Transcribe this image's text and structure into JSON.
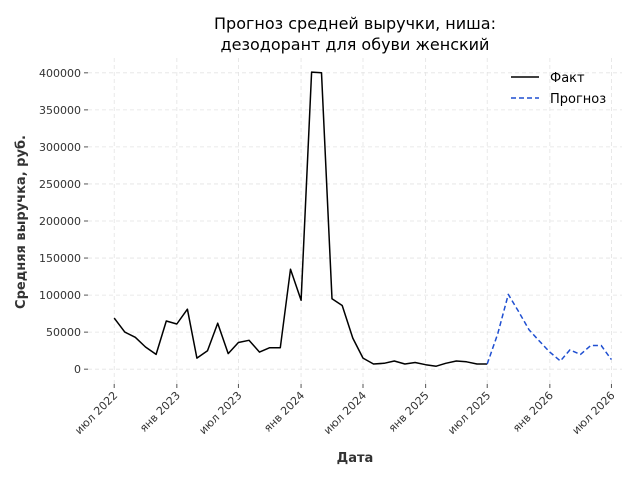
{
  "chart_data": {
    "type": "line",
    "title_line1": "Прогноз средней выручки, ниша:",
    "title_line2": "дезодорант для обуви женский",
    "xlabel": "Дата",
    "ylabel": "Средняя выручка, руб.",
    "ylim": [
      -20000,
      420000
    ],
    "yticks": [
      0,
      50000,
      100000,
      150000,
      200000,
      250000,
      300000,
      350000,
      400000
    ],
    "xlim": [
      "2022-04-15",
      "2026-08-01"
    ],
    "xticks": [
      {
        "date": "2022-07-01",
        "label": "июл 2022"
      },
      {
        "date": "2023-01-01",
        "label": "янв 2023"
      },
      {
        "date": "2023-07-01",
        "label": "июл 2023"
      },
      {
        "date": "2024-01-01",
        "label": "янв 2024"
      },
      {
        "date": "2024-07-01",
        "label": "июл 2024"
      },
      {
        "date": "2025-01-01",
        "label": "янв 2025"
      },
      {
        "date": "2025-07-01",
        "label": "июл 2025"
      },
      {
        "date": "2026-01-01",
        "label": "янв 2026"
      },
      {
        "date": "2026-07-01",
        "label": "июл 2026"
      }
    ],
    "grid": true,
    "legend_position": "top-right",
    "series": [
      {
        "name": "Факт",
        "color": "#000000",
        "style": "solid",
        "points": [
          {
            "x": "2022-07-01",
            "y": 69000
          },
          {
            "x": "2022-08-01",
            "y": 50000
          },
          {
            "x": "2022-09-01",
            "y": 43000
          },
          {
            "x": "2022-10-01",
            "y": 30000
          },
          {
            "x": "2022-11-01",
            "y": 20000
          },
          {
            "x": "2022-12-01",
            "y": 65000
          },
          {
            "x": "2023-01-01",
            "y": 61000
          },
          {
            "x": "2023-02-01",
            "y": 81000
          },
          {
            "x": "2023-03-01",
            "y": 15000
          },
          {
            "x": "2023-04-01",
            "y": 25000
          },
          {
            "x": "2023-05-01",
            "y": 62000
          },
          {
            "x": "2023-06-01",
            "y": 21000
          },
          {
            "x": "2023-07-01",
            "y": 36000
          },
          {
            "x": "2023-08-01",
            "y": 39000
          },
          {
            "x": "2023-09-01",
            "y": 23000
          },
          {
            "x": "2023-10-01",
            "y": 29000
          },
          {
            "x": "2023-11-01",
            "y": 29000
          },
          {
            "x": "2023-12-01",
            "y": 135000
          },
          {
            "x": "2024-01-01",
            "y": 93000
          },
          {
            "x": "2024-02-01",
            "y": 401000
          },
          {
            "x": "2024-03-01",
            "y": 400000
          },
          {
            "x": "2024-04-01",
            "y": 95000
          },
          {
            "x": "2024-05-01",
            "y": 86000
          },
          {
            "x": "2024-06-01",
            "y": 42000
          },
          {
            "x": "2024-07-01",
            "y": 15000
          },
          {
            "x": "2024-08-01",
            "y": 7000
          },
          {
            "x": "2024-09-01",
            "y": 8000
          },
          {
            "x": "2024-10-01",
            "y": 11000
          },
          {
            "x": "2024-11-01",
            "y": 7000
          },
          {
            "x": "2024-12-01",
            "y": 9000
          },
          {
            "x": "2025-01-01",
            "y": 6000
          },
          {
            "x": "2025-02-01",
            "y": 4000
          },
          {
            "x": "2025-03-01",
            "y": 8000
          },
          {
            "x": "2025-04-01",
            "y": 11000
          },
          {
            "x": "2025-05-01",
            "y": 10000
          },
          {
            "x": "2025-06-01",
            "y": 7000
          },
          {
            "x": "2025-07-01",
            "y": 7000
          }
        ]
      },
      {
        "name": "Прогноз",
        "color": "#1f4fd1",
        "style": "dashed",
        "points": [
          {
            "x": "2025-07-01",
            "y": 7000
          },
          {
            "x": "2025-08-01",
            "y": 48000
          },
          {
            "x": "2025-09-01",
            "y": 101000
          },
          {
            "x": "2025-10-01",
            "y": 78000
          },
          {
            "x": "2025-11-01",
            "y": 53000
          },
          {
            "x": "2025-12-01",
            "y": 38000
          },
          {
            "x": "2026-01-01",
            "y": 23000
          },
          {
            "x": "2026-02-01",
            "y": 11000
          },
          {
            "x": "2026-03-01",
            "y": 26000
          },
          {
            "x": "2026-04-01",
            "y": 20000
          },
          {
            "x": "2026-05-01",
            "y": 32000
          },
          {
            "x": "2026-06-01",
            "y": 32000
          },
          {
            "x": "2026-07-01",
            "y": 13000
          }
        ]
      }
    ]
  }
}
